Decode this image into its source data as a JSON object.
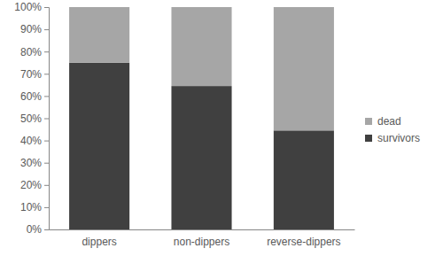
{
  "chart_data": {
    "type": "bar",
    "stacked": true,
    "categories": [
      "dippers",
      "non-dippers",
      "reverse-dippers"
    ],
    "series": [
      {
        "name": "survivors",
        "color": "#404040",
        "values": [
          75,
          64.5,
          44.5
        ]
      },
      {
        "name": "dead",
        "color": "#a6a6a6",
        "values": [
          25,
          35.5,
          55.5
        ]
      }
    ],
    "ylim": [
      0,
      100
    ],
    "yticks": [
      {
        "value": 0,
        "label": "0%"
      },
      {
        "value": 10,
        "label": "10%"
      },
      {
        "value": 20,
        "label": "20%"
      },
      {
        "value": 30,
        "label": "30%"
      },
      {
        "value": 40,
        "label": "40%"
      },
      {
        "value": 50,
        "label": "50%"
      },
      {
        "value": 60,
        "label": "60%"
      },
      {
        "value": 70,
        "label": "70%"
      },
      {
        "value": 80,
        "label": "80%"
      },
      {
        "value": 90,
        "label": "90%"
      },
      {
        "value": 100,
        "label": "100%"
      }
    ],
    "legend": "right",
    "grid": false
  }
}
